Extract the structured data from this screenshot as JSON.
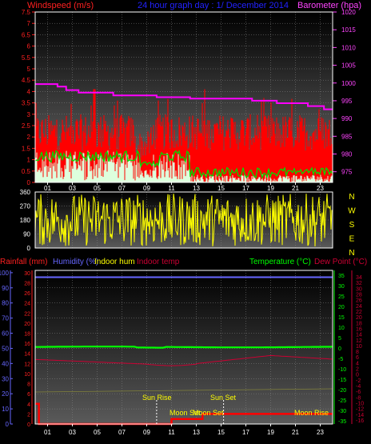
{
  "header": {
    "left_label": "Windspeed (m/s)",
    "title": "24 hour graph day : 1/ December 2014",
    "right_label": "Barometer (hpa)"
  },
  "bottom_header": {
    "rainfall": "Rainfall (mm)",
    "humidity": "Humidity (%)",
    "indoor_hum": "Indoor hum",
    "indoor_temp": "Indoor temp",
    "temperature": "Temperature (°C)",
    "dew_point": "Dew Point (°C)"
  },
  "direction_letters": [
    "N",
    "W",
    "S",
    "E",
    "N"
  ],
  "annotations": {
    "sun_rise": "Sun Rise",
    "sun_set": "Sun Set",
    "moon_set": "Moon Set",
    "moon_rise": "Moon Rise"
  },
  "colors": {
    "wind_fill": "#ff0000",
    "wind_avg": "#ddffdd",
    "gust_line": "#00dd00",
    "barometer": "#ff00ff",
    "direction": "#ffff00",
    "temperature": "#00ff00",
    "dew_point": "#cc0033",
    "humidity": "#6666ff",
    "rain": "#ff0000",
    "grid": "#888888"
  },
  "chart_data": [
    {
      "type": "area",
      "name": "wind_barometer",
      "x_ticks": [
        "01",
        "03",
        "05",
        "07",
        "09",
        "11",
        "13",
        "15",
        "17",
        "19",
        "21",
        "23"
      ],
      "y_left_ticks": [
        "0",
        "0.5",
        "1",
        "1.5",
        "2",
        "2.5",
        "3",
        "3.5",
        "4",
        "4.5",
        "5",
        "5.5",
        "6",
        "6.5",
        "7",
        "7.5"
      ],
      "y_left_range": [
        0,
        7.5
      ],
      "y_right_ticks": [
        "975",
        "980",
        "985",
        "990",
        "995",
        "1000",
        "1005",
        "1010",
        "1015",
        "1020"
      ],
      "y_right_range": [
        972,
        1020
      ],
      "barometer_steps": [
        {
          "from": 0,
          "to": 1.8,
          "value": 999.7
        },
        {
          "from": 1.8,
          "to": 2.5,
          "value": 999.0
        },
        {
          "from": 2.5,
          "to": 3.5,
          "value": 998.0
        },
        {
          "from": 3.5,
          "to": 6.3,
          "value": 997.3
        },
        {
          "from": 6.3,
          "to": 9.8,
          "value": 996.5
        },
        {
          "from": 9.8,
          "to": 12.5,
          "value": 996.0
        },
        {
          "from": 12.5,
          "to": 17.5,
          "value": 995.6
        },
        {
          "from": 17.5,
          "to": 19.5,
          "value": 995.0
        },
        {
          "from": 19.5,
          "to": 22.0,
          "value": 994.3
        },
        {
          "from": 22.0,
          "to": 23.3,
          "value": 993.5
        },
        {
          "from": 23.3,
          "to": 24.0,
          "value": 992.6
        }
      ],
      "wind_gust_typical": 2.2,
      "wind_gust_peak": 4.6,
      "wind_avg_morning": 1.1,
      "wind_avg_afternoon": 0.2
    },
    {
      "type": "scatter",
      "name": "wind_direction",
      "y_ticks": [
        "360",
        "270",
        "180",
        "90",
        "0"
      ],
      "y_range": [
        0,
        360
      ]
    },
    {
      "type": "line",
      "name": "temp_hum_rain",
      "y_left_outer_ticks": [
        "100",
        "90",
        "80",
        "70",
        "60",
        "50",
        "40",
        "30",
        "20",
        "10",
        "0"
      ],
      "y_left_inner_ticks": [
        "30",
        "28",
        "26",
        "24",
        "22",
        "20",
        "18",
        "16",
        "14",
        "12",
        "10",
        "8",
        "6",
        "4",
        "2",
        "0"
      ],
      "y_right_inner_ticks": [
        "35",
        "30",
        "25",
        "20",
        "15",
        "10",
        "5",
        "0",
        "-5",
        "-10",
        "-15",
        "-20",
        "-25",
        "-30",
        "-35"
      ],
      "y_right_outer_ticks": [
        "34",
        "32",
        "30",
        "28",
        "26",
        "24",
        "22",
        "20",
        "18",
        "16",
        "14",
        "12",
        "10",
        "8",
        "6",
        "4",
        "2",
        "0",
        "-2",
        "-4",
        "-6",
        "-8",
        "-10",
        "-12",
        "-14",
        "-16"
      ],
      "humidity_value": 97,
      "temperature_range": [
        0.3,
        0.7
      ],
      "dew_point_range": [
        -8.5,
        -3.5
      ],
      "rain_total_steps": [
        {
          "from": 0,
          "to": 0.3,
          "value": 4
        },
        {
          "from": 0.3,
          "to": 11.0,
          "value": 0
        },
        {
          "from": 11.0,
          "to": 13.5,
          "value": 1
        },
        {
          "from": 13.5,
          "to": 24.0,
          "value": 2
        }
      ],
      "sun_rise_hour": 9.8,
      "sun_set_hour": 15.2
    }
  ]
}
